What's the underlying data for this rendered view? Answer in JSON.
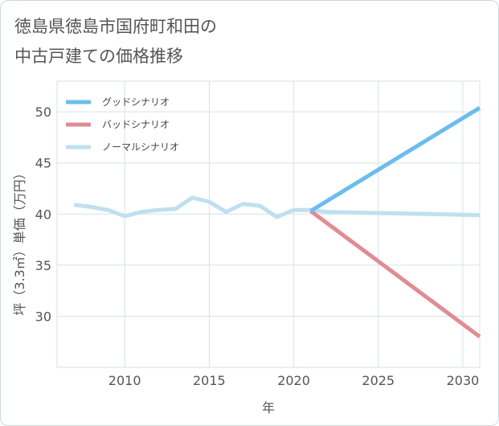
{
  "colors": {
    "good": "#6cbcee",
    "bad": "#e08c95",
    "normal": "#bfe0ee",
    "grid": "#d6e2ea",
    "text": "#555555"
  },
  "chart_data": {
    "type": "line",
    "title": "徳島県徳島市国府町和田の\n中古戸建ての価格推移",
    "xlabel": "年",
    "ylabel": "坪（3.3㎡）単価（万円）",
    "xlim": [
      2006,
      2031
    ],
    "ylim": [
      25,
      53
    ],
    "xticks": [
      2010,
      2015,
      2020,
      2025,
      2030
    ],
    "yticks": [
      30,
      35,
      40,
      45,
      50
    ],
    "legend_position": "top-left",
    "series": [
      {
        "name": "グッドシナリオ",
        "color_key": "good",
        "x": [
          2021,
          2031
        ],
        "y": [
          40.3,
          50.4
        ]
      },
      {
        "name": "バッドシナリオ",
        "color_key": "bad",
        "x": [
          2021,
          2031
        ],
        "y": [
          40.3,
          28.0
        ]
      },
      {
        "name": "ノーマルシナリオ",
        "color_key": "normal",
        "x": [
          2007,
          2008,
          2009,
          2010,
          2011,
          2012,
          2013,
          2014,
          2015,
          2016,
          2017,
          2018,
          2019,
          2020,
          2021,
          2022,
          2025,
          2028,
          2031
        ],
        "y": [
          40.9,
          40.7,
          40.4,
          39.8,
          40.2,
          40.4,
          40.5,
          41.6,
          41.2,
          40.2,
          41.0,
          40.8,
          39.7,
          40.4,
          40.4,
          40.2,
          40.1,
          40.0,
          39.9
        ]
      }
    ]
  }
}
